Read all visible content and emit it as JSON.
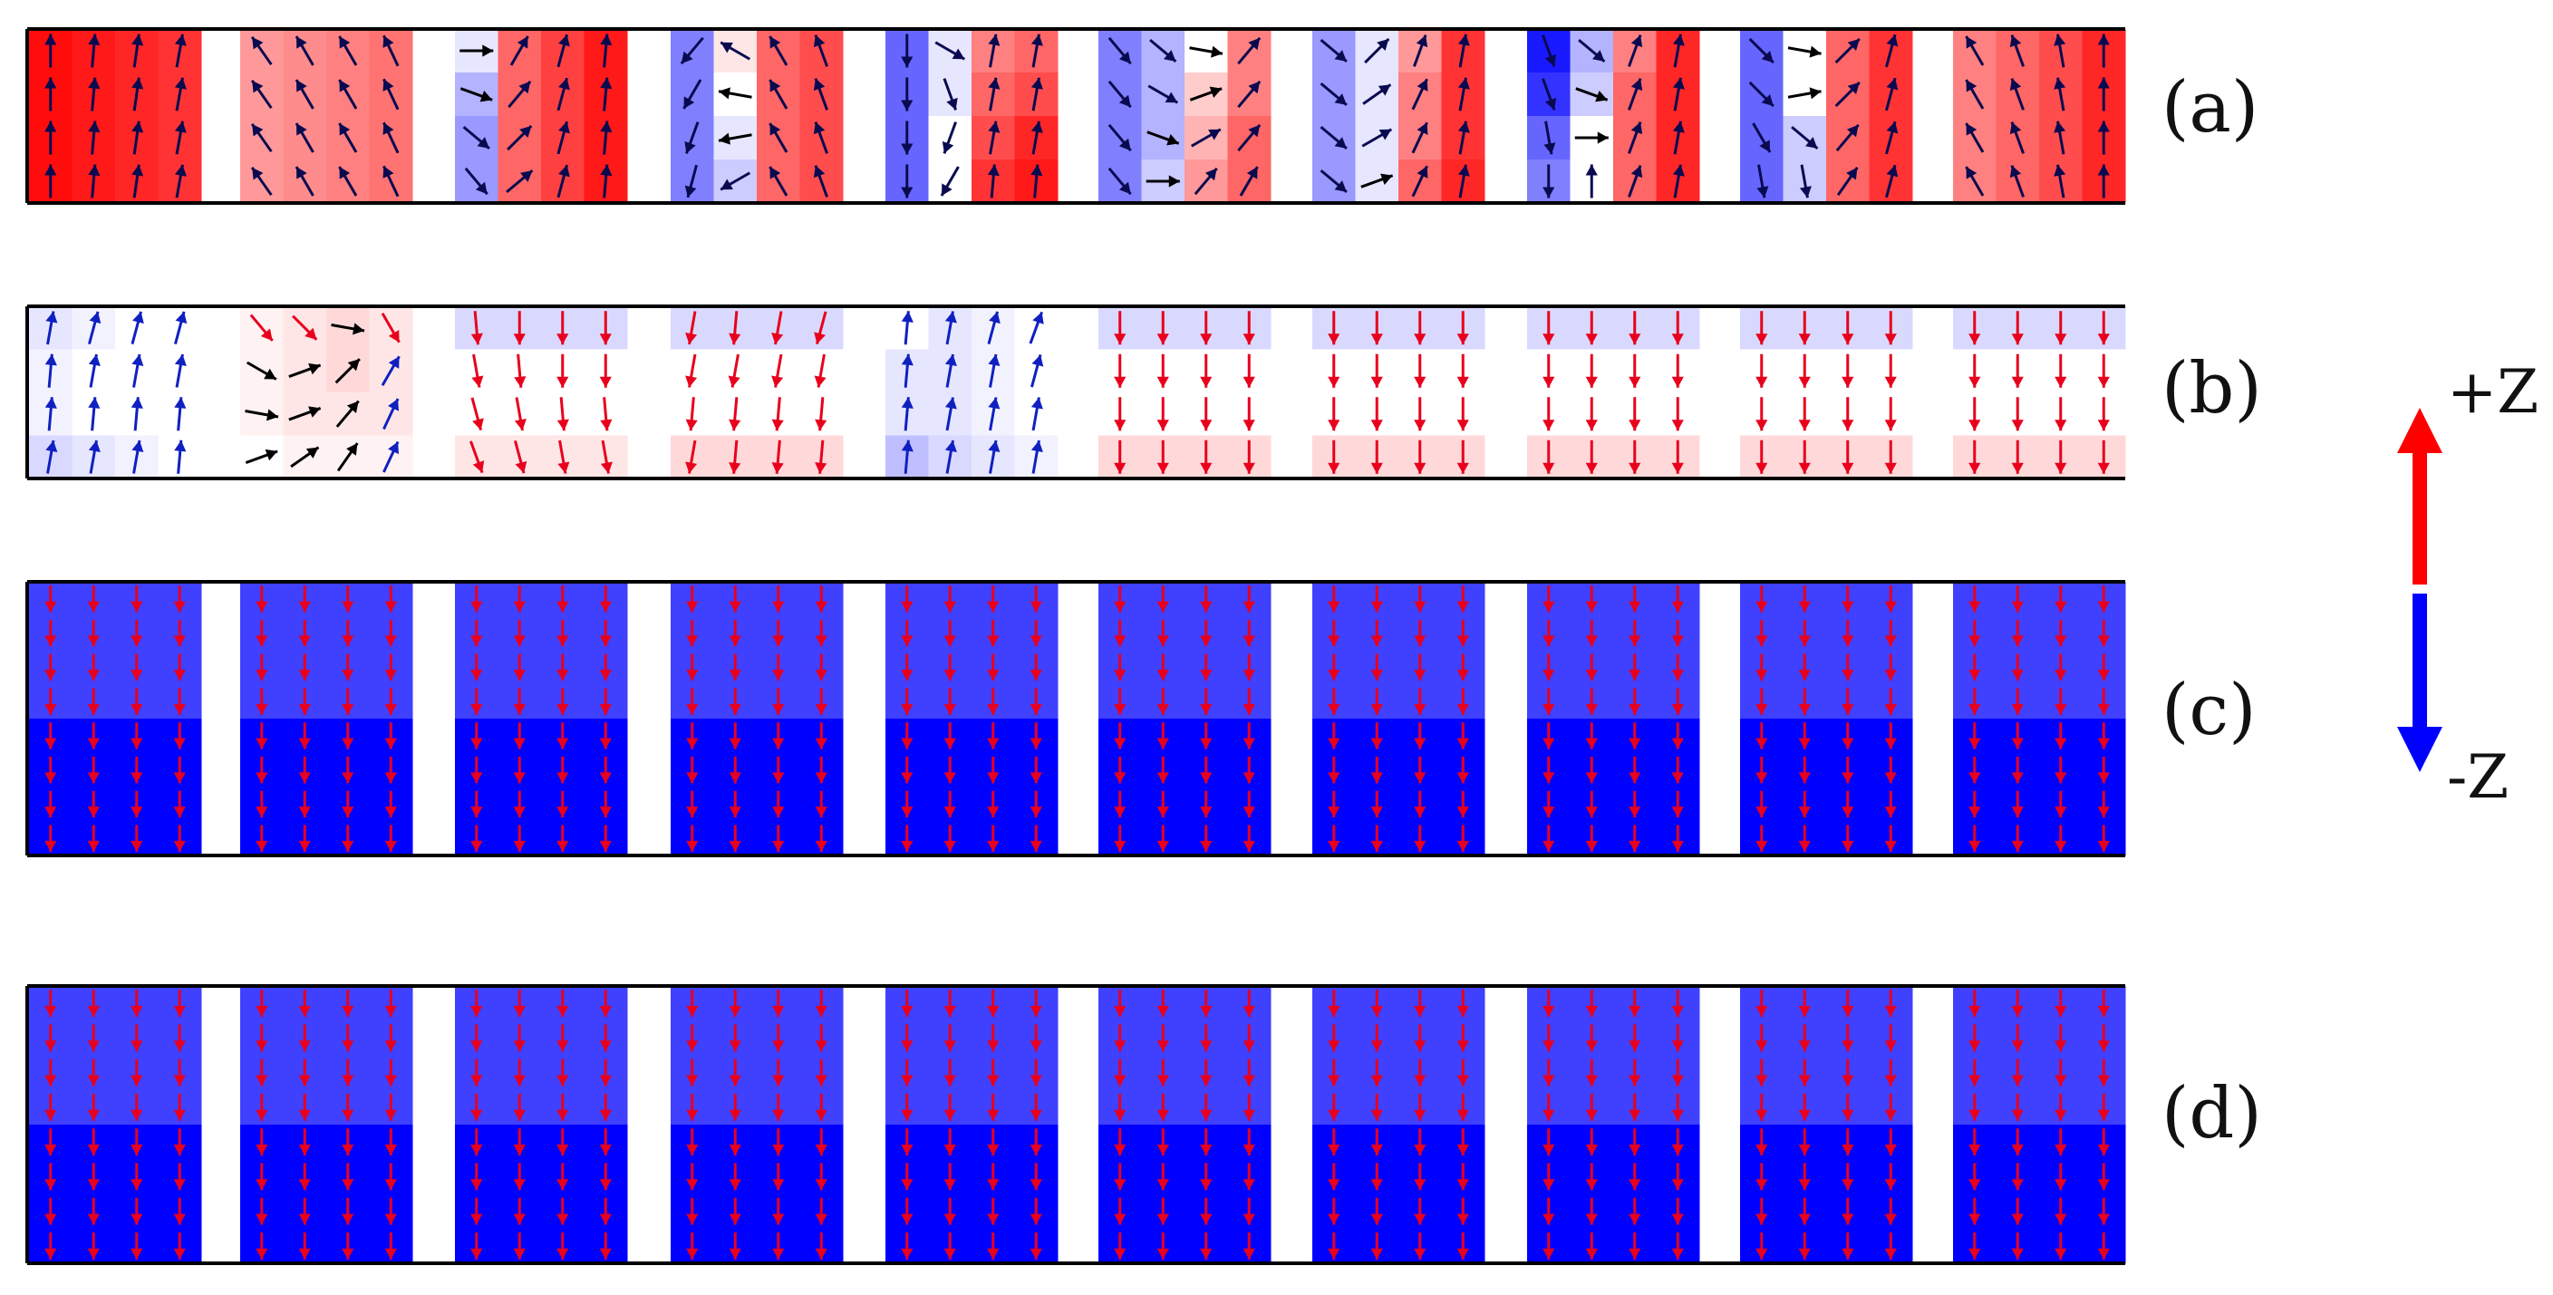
{
  "panels": [
    {
      "id": "a",
      "label": "(a)",
      "rows": 4,
      "cols": 4,
      "pillars": [
        {
          "mz": [
            [
              0.95,
              0.9,
              0.85,
              0.8
            ],
            [
              0.95,
              0.9,
              0.85,
              0.8
            ],
            [
              0.95,
              0.9,
              0.85,
              0.8
            ],
            [
              0.95,
              0.9,
              0.85,
              0.8
            ]
          ],
          "angle": [
            [
              0,
              5,
              8,
              10
            ],
            [
              0,
              5,
              8,
              10
            ],
            [
              0,
              5,
              8,
              10
            ],
            [
              0,
              5,
              8,
              10
            ]
          ]
        },
        {
          "mz": [
            [
              0.4,
              0.45,
              0.5,
              0.55
            ],
            [
              0.4,
              0.45,
              0.5,
              0.55
            ],
            [
              0.4,
              0.45,
              0.5,
              0.55
            ],
            [
              0.4,
              0.45,
              0.5,
              0.55
            ]
          ],
          "angle": [
            [
              -35,
              -30,
              -30,
              -25
            ],
            [
              -35,
              -30,
              -30,
              -25
            ],
            [
              -35,
              -30,
              -30,
              -25
            ],
            [
              -35,
              -30,
              -30,
              -25
            ]
          ]
        },
        {
          "mz": [
            [
              -0.1,
              0.6,
              0.75,
              0.9
            ],
            [
              -0.3,
              0.6,
              0.75,
              0.9
            ],
            [
              -0.4,
              0.6,
              0.75,
              0.9
            ],
            [
              -0.4,
              0.6,
              0.75,
              0.9
            ]
          ],
          "angle": [
            [
              90,
              30,
              15,
              5
            ],
            [
              110,
              40,
              15,
              5
            ],
            [
              130,
              45,
              15,
              5
            ],
            [
              140,
              50,
              15,
              5
            ]
          ]
        },
        {
          "mz": [
            [
              -0.5,
              0.1,
              0.6,
              0.7
            ],
            [
              -0.5,
              0.0,
              0.6,
              0.7
            ],
            [
              -0.5,
              -0.1,
              0.6,
              0.7
            ],
            [
              -0.5,
              -0.2,
              0.6,
              0.7
            ]
          ],
          "angle": [
            [
              -140,
              -60,
              -30,
              -20
            ],
            [
              -150,
              -80,
              -30,
              -20
            ],
            [
              -160,
              -100,
              -30,
              -20
            ],
            [
              -165,
              -120,
              -30,
              -20
            ]
          ]
        },
        {
          "mz": [
            [
              -0.6,
              -0.1,
              0.5,
              0.6
            ],
            [
              -0.6,
              -0.1,
              0.6,
              0.7
            ],
            [
              -0.6,
              0.0,
              0.7,
              0.85
            ],
            [
              -0.6,
              0.0,
              0.8,
              0.9
            ]
          ],
          "angle": [
            [
              180,
              120,
              10,
              10
            ],
            [
              180,
              160,
              10,
              10
            ],
            [
              180,
              -160,
              10,
              10
            ],
            [
              180,
              -150,
              5,
              5
            ]
          ]
        },
        {
          "mz": [
            [
              -0.5,
              -0.3,
              0.0,
              0.5
            ],
            [
              -0.5,
              -0.3,
              0.2,
              0.5
            ],
            [
              -0.5,
              -0.3,
              0.3,
              0.6
            ],
            [
              -0.5,
              -0.2,
              0.4,
              0.6
            ]
          ],
          "angle": [
            [
              140,
              130,
              100,
              40
            ],
            [
              140,
              120,
              70,
              40
            ],
            [
              140,
              110,
              60,
              40
            ],
            [
              140,
              90,
              40,
              30
            ]
          ]
        },
        {
          "mz": [
            [
              -0.4,
              -0.1,
              0.4,
              0.8
            ],
            [
              -0.4,
              -0.1,
              0.5,
              0.8
            ],
            [
              -0.4,
              -0.1,
              0.5,
              0.8
            ],
            [
              -0.4,
              -0.1,
              0.6,
              0.85
            ]
          ],
          "angle": [
            [
              130,
              45,
              20,
              10
            ],
            [
              130,
              55,
              25,
              10
            ],
            [
              130,
              60,
              25,
              10
            ],
            [
              130,
              70,
              25,
              10
            ]
          ]
        },
        {
          "mz": [
            [
              -0.9,
              -0.3,
              0.5,
              0.85
            ],
            [
              -0.8,
              -0.2,
              0.6,
              0.85
            ],
            [
              -0.6,
              0.0,
              0.6,
              0.85
            ],
            [
              -0.5,
              0.0,
              0.6,
              0.85
            ]
          ],
          "angle": [
            [
              160,
              130,
              20,
              10
            ],
            [
              160,
              110,
              20,
              10
            ],
            [
              170,
              90,
              20,
              10
            ],
            [
              180,
              0,
              20,
              10
            ]
          ]
        },
        {
          "mz": [
            [
              -0.6,
              0.0,
              0.6,
              0.8
            ],
            [
              -0.6,
              0.0,
              0.6,
              0.8
            ],
            [
              -0.6,
              -0.2,
              0.6,
              0.8
            ],
            [
              -0.6,
              -0.2,
              0.6,
              0.8
            ]
          ],
          "angle": [
            [
              135,
              100,
              45,
              15
            ],
            [
              135,
              80,
              45,
              15
            ],
            [
              150,
              130,
              40,
              15
            ],
            [
              170,
              170,
              35,
              15
            ]
          ]
        },
        {
          "mz": [
            [
              0.5,
              0.6,
              0.7,
              0.85
            ],
            [
              0.5,
              0.6,
              0.7,
              0.85
            ],
            [
              0.5,
              0.6,
              0.7,
              0.85
            ],
            [
              0.5,
              0.6,
              0.7,
              0.85
            ]
          ],
          "angle": [
            [
              -30,
              -20,
              -10,
              0
            ],
            [
              -30,
              -20,
              -10,
              0
            ],
            [
              -30,
              -20,
              -10,
              0
            ],
            [
              -30,
              -20,
              -10,
              0
            ]
          ]
        }
      ]
    },
    {
      "id": "b",
      "label": "(b)",
      "rows": 4,
      "cols": 4,
      "pillars": [
        {
          "mz": [
            [
              -0.1,
              -0.05,
              0.0,
              0.0
            ],
            [
              -0.05,
              0.0,
              0.0,
              0.0
            ],
            [
              -0.05,
              0.0,
              0.0,
              0.0
            ],
            [
              -0.15,
              -0.1,
              -0.05,
              0.0
            ]
          ],
          "angle": [
            [
              10,
              15,
              15,
              15
            ],
            [
              5,
              10,
              10,
              10
            ],
            [
              5,
              5,
              5,
              5
            ],
            [
              10,
              10,
              10,
              5
            ]
          ]
        },
        {
          "mz": [
            [
              0.05,
              0.1,
              0.15,
              0.1
            ],
            [
              0.05,
              0.1,
              0.15,
              0.1
            ],
            [
              0.05,
              0.1,
              0.1,
              0.1
            ],
            [
              0.0,
              0.05,
              0.05,
              0.05
            ]
          ],
          "angle": [
            [
              140,
              135,
              100,
              150
            ],
            [
              120,
              70,
              45,
              30
            ],
            [
              100,
              70,
              40,
              25
            ],
            [
              70,
              55,
              35,
              25
            ]
          ]
        },
        {
          "mz": [
            [
              -0.15,
              -0.15,
              -0.15,
              -0.15
            ],
            [
              0.0,
              0.0,
              0.0,
              0.0
            ],
            [
              0.0,
              0.0,
              0.0,
              0.0
            ],
            [
              0.1,
              0.1,
              0.1,
              0.1
            ]
          ],
          "angle": [
            [
              175,
              180,
              180,
              180
            ],
            [
              170,
              175,
              180,
              180
            ],
            [
              165,
              170,
              175,
              175
            ],
            [
              160,
              165,
              170,
              170
            ]
          ]
        },
        {
          "mz": [
            [
              -0.15,
              -0.15,
              -0.15,
              -0.15
            ],
            [
              0.0,
              0.0,
              0.0,
              0.0
            ],
            [
              0.0,
              0.0,
              0.0,
              0.0
            ],
            [
              0.15,
              0.15,
              0.15,
              0.15
            ]
          ],
          "angle": [
            [
              -170,
              -175,
              -170,
              -165
            ],
            [
              -170,
              -170,
              -170,
              -170
            ],
            [
              -175,
              -175,
              -175,
              -175
            ],
            [
              -170,
              -175,
              -175,
              -175
            ]
          ]
        },
        {
          "mz": [
            [
              0.0,
              -0.1,
              -0.05,
              0.0
            ],
            [
              -0.1,
              -0.1,
              -0.05,
              0.0
            ],
            [
              -0.1,
              -0.1,
              -0.05,
              0.0
            ],
            [
              -0.25,
              -0.15,
              -0.1,
              -0.05
            ]
          ],
          "angle": [
            [
              5,
              10,
              15,
              20
            ],
            [
              5,
              10,
              10,
              15
            ],
            [
              5,
              10,
              10,
              10
            ],
            [
              5,
              10,
              10,
              10
            ]
          ]
        },
        {
          "mz": [
            [
              -0.15,
              -0.15,
              -0.15,
              -0.15
            ],
            [
              0.0,
              0.0,
              0.0,
              0.0
            ],
            [
              0.0,
              0.0,
              0.0,
              0.0
            ],
            [
              0.15,
              0.15,
              0.15,
              0.15
            ]
          ],
          "angle": [
            [
              180,
              180,
              180,
              180
            ],
            [
              180,
              180,
              180,
              180
            ],
            [
              180,
              180,
              180,
              180
            ],
            [
              180,
              180,
              180,
              180
            ]
          ]
        },
        {
          "mz": [
            [
              -0.15,
              -0.15,
              -0.15,
              -0.15
            ],
            [
              0.0,
              0.0,
              0.0,
              0.0
            ],
            [
              0.0,
              0.0,
              0.0,
              0.0
            ],
            [
              0.15,
              0.15,
              0.15,
              0.15
            ]
          ],
          "angle": [
            [
              180,
              180,
              180,
              180
            ],
            [
              180,
              180,
              180,
              180
            ],
            [
              180,
              180,
              180,
              180
            ],
            [
              180,
              180,
              180,
              180
            ]
          ]
        },
        {
          "mz": [
            [
              -0.15,
              -0.15,
              -0.15,
              -0.15
            ],
            [
              0.0,
              0.0,
              0.0,
              0.0
            ],
            [
              0.0,
              0.0,
              0.0,
              0.0
            ],
            [
              0.15,
              0.15,
              0.15,
              0.15
            ]
          ],
          "angle": [
            [
              180,
              180,
              180,
              180
            ],
            [
              180,
              180,
              180,
              180
            ],
            [
              180,
              180,
              180,
              180
            ],
            [
              180,
              180,
              180,
              180
            ]
          ]
        },
        {
          "mz": [
            [
              -0.15,
              -0.15,
              -0.15,
              -0.15
            ],
            [
              0.0,
              0.0,
              0.0,
              0.0
            ],
            [
              0.0,
              0.0,
              0.0,
              0.0
            ],
            [
              0.15,
              0.15,
              0.15,
              0.15
            ]
          ],
          "angle": [
            [
              180,
              180,
              180,
              180
            ],
            [
              180,
              180,
              180,
              180
            ],
            [
              180,
              180,
              180,
              180
            ],
            [
              180,
              180,
              180,
              180
            ]
          ]
        },
        {
          "mz": [
            [
              -0.15,
              -0.15,
              -0.15,
              -0.15
            ],
            [
              0.0,
              0.0,
              0.0,
              0.0
            ],
            [
              0.0,
              0.0,
              0.0,
              0.0
            ],
            [
              0.15,
              0.15,
              0.15,
              0.15
            ]
          ],
          "angle": [
            [
              180,
              180,
              180,
              180
            ],
            [
              180,
              180,
              180,
              180
            ],
            [
              180,
              180,
              180,
              180
            ],
            [
              180,
              180,
              180,
              180
            ]
          ]
        }
      ]
    },
    {
      "id": "c",
      "label": "(c)",
      "rows": 8,
      "cols": 4,
      "uniform_mz_rows": [
        -0.75,
        -0.75,
        -0.75,
        -0.75,
        -1.0,
        -1.0,
        -1.0,
        -1.0
      ],
      "uniform_angle": 180,
      "pillar_count": 10
    },
    {
      "id": "d",
      "label": "(d)",
      "rows": 8,
      "cols": 4,
      "uniform_mz_rows": [
        -0.75,
        -0.75,
        -0.75,
        -0.75,
        -1.0,
        -1.0,
        -1.0,
        -1.0
      ],
      "uniform_angle": 180,
      "pillar_count": 10
    }
  ],
  "legend": {
    "plus_label": "+Z",
    "minus_label": "-Z",
    "plus_color": "#ff0000",
    "minus_color": "#0000ff"
  },
  "colors": {
    "positive": "#ff0000",
    "negative": "#0000ff",
    "arrow_dark": "#0a0a50",
    "arrow_red": "#e8001c",
    "arrow_blue": "#1020c0",
    "arrow_black": "#000000"
  }
}
